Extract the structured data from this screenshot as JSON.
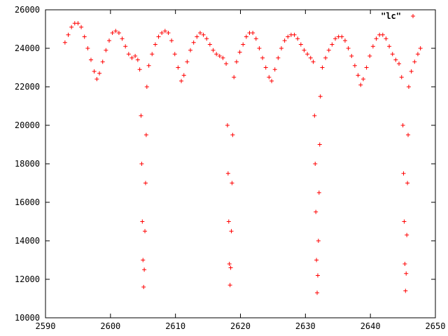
{
  "chart_data": {
    "type": "scatter",
    "title": "",
    "xlabel": "",
    "ylabel": "",
    "xlim": [
      2590,
      2650
    ],
    "ylim": [
      10000,
      26000
    ],
    "x_ticks": [
      2590,
      2600,
      2610,
      2620,
      2630,
      2640,
      2650
    ],
    "y_ticks": [
      10000,
      12000,
      14000,
      16000,
      18000,
      20000,
      22000,
      24000,
      26000
    ],
    "grid": false,
    "legend_position": "top-right",
    "marker": "+",
    "series": [
      {
        "name": "\"lc\"",
        "color": "#ff0000",
        "points": [
          [
            2593.0,
            24300
          ],
          [
            2593.5,
            24700
          ],
          [
            2594.0,
            25100
          ],
          [
            2594.5,
            25300
          ],
          [
            2595.0,
            25300
          ],
          [
            2595.5,
            25100
          ],
          [
            2596.0,
            24600
          ],
          [
            2596.5,
            24000
          ],
          [
            2597.0,
            23400
          ],
          [
            2597.5,
            22800
          ],
          [
            2597.9,
            22400
          ],
          [
            2598.3,
            22700
          ],
          [
            2598.8,
            23300
          ],
          [
            2599.3,
            23900
          ],
          [
            2599.8,
            24400
          ],
          [
            2600.3,
            24800
          ],
          [
            2600.8,
            24900
          ],
          [
            2601.3,
            24800
          ],
          [
            2601.8,
            24500
          ],
          [
            2602.3,
            24100
          ],
          [
            2602.8,
            23700
          ],
          [
            2603.3,
            23500
          ],
          [
            2603.8,
            23600
          ],
          [
            2604.2,
            23400
          ],
          [
            2604.5,
            22900
          ],
          [
            2604.7,
            20500
          ],
          [
            2604.8,
            18000
          ],
          [
            2604.9,
            15000
          ],
          [
            2605.0,
            13000
          ],
          [
            2605.1,
            11600
          ],
          [
            2605.2,
            12500
          ],
          [
            2605.3,
            14500
          ],
          [
            2605.4,
            17000
          ],
          [
            2605.5,
            19500
          ],
          [
            2605.6,
            22000
          ],
          [
            2605.9,
            23100
          ],
          [
            2606.4,
            23700
          ],
          [
            2606.9,
            24200
          ],
          [
            2607.4,
            24600
          ],
          [
            2607.9,
            24800
          ],
          [
            2608.4,
            24900
          ],
          [
            2608.9,
            24800
          ],
          [
            2609.4,
            24400
          ],
          [
            2609.9,
            23700
          ],
          [
            2610.4,
            23000
          ],
          [
            2610.9,
            22300
          ],
          [
            2611.3,
            22600
          ],
          [
            2611.8,
            23300
          ],
          [
            2612.3,
            23900
          ],
          [
            2612.8,
            24300
          ],
          [
            2613.3,
            24600
          ],
          [
            2613.8,
            24800
          ],
          [
            2614.3,
            24700
          ],
          [
            2614.8,
            24500
          ],
          [
            2615.3,
            24200
          ],
          [
            2615.8,
            23900
          ],
          [
            2616.3,
            23700
          ],
          [
            2616.8,
            23600
          ],
          [
            2617.3,
            23500
          ],
          [
            2617.8,
            23200
          ],
          [
            2618.0,
            20000
          ],
          [
            2618.1,
            17500
          ],
          [
            2618.2,
            15000
          ],
          [
            2618.3,
            12800
          ],
          [
            2618.4,
            11700
          ],
          [
            2618.5,
            12600
          ],
          [
            2618.6,
            14500
          ],
          [
            2618.7,
            17000
          ],
          [
            2618.8,
            19500
          ],
          [
            2619.0,
            22500
          ],
          [
            2619.4,
            23300
          ],
          [
            2619.9,
            23800
          ],
          [
            2620.4,
            24200
          ],
          [
            2620.9,
            24600
          ],
          [
            2621.4,
            24800
          ],
          [
            2621.9,
            24800
          ],
          [
            2622.4,
            24500
          ],
          [
            2622.9,
            24000
          ],
          [
            2623.4,
            23500
          ],
          [
            2623.9,
            23000
          ],
          [
            2624.4,
            22500
          ],
          [
            2624.8,
            22300
          ],
          [
            2625.3,
            22900
          ],
          [
            2625.8,
            23500
          ],
          [
            2626.3,
            24000
          ],
          [
            2626.8,
            24400
          ],
          [
            2627.3,
            24600
          ],
          [
            2627.8,
            24700
          ],
          [
            2628.3,
            24700
          ],
          [
            2628.8,
            24500
          ],
          [
            2629.3,
            24200
          ],
          [
            2629.8,
            23900
          ],
          [
            2630.3,
            23700
          ],
          [
            2630.8,
            23500
          ],
          [
            2631.2,
            23300
          ],
          [
            2631.4,
            20500
          ],
          [
            2631.5,
            18000
          ],
          [
            2631.6,
            15500
          ],
          [
            2631.7,
            13000
          ],
          [
            2631.8,
            11300
          ],
          [
            2631.9,
            12200
          ],
          [
            2632.0,
            14000
          ],
          [
            2632.1,
            16500
          ],
          [
            2632.2,
            19000
          ],
          [
            2632.3,
            21500
          ],
          [
            2632.6,
            23000
          ],
          [
            2633.1,
            23500
          ],
          [
            2633.6,
            23900
          ],
          [
            2634.1,
            24200
          ],
          [
            2634.6,
            24500
          ],
          [
            2635.1,
            24600
          ],
          [
            2635.6,
            24600
          ],
          [
            2636.1,
            24400
          ],
          [
            2636.6,
            24000
          ],
          [
            2637.1,
            23600
          ],
          [
            2637.6,
            23100
          ],
          [
            2638.1,
            22600
          ],
          [
            2638.5,
            22100
          ],
          [
            2638.9,
            22400
          ],
          [
            2639.4,
            23000
          ],
          [
            2639.9,
            23600
          ],
          [
            2640.4,
            24100
          ],
          [
            2640.9,
            24500
          ],
          [
            2641.4,
            24700
          ],
          [
            2641.9,
            24700
          ],
          [
            2642.4,
            24500
          ],
          [
            2642.9,
            24100
          ],
          [
            2643.4,
            23700
          ],
          [
            2643.9,
            23400
          ],
          [
            2644.4,
            23200
          ],
          [
            2644.8,
            22500
          ],
          [
            2645.0,
            20000
          ],
          [
            2645.1,
            17500
          ],
          [
            2645.2,
            15000
          ],
          [
            2645.3,
            12800
          ],
          [
            2645.4,
            11400
          ],
          [
            2645.5,
            12300
          ],
          [
            2645.6,
            14300
          ],
          [
            2645.7,
            17000
          ],
          [
            2645.8,
            19500
          ],
          [
            2645.9,
            22000
          ],
          [
            2646.3,
            22800
          ],
          [
            2646.8,
            23300
          ],
          [
            2647.3,
            23700
          ],
          [
            2647.7,
            24000
          ]
        ]
      }
    ]
  }
}
